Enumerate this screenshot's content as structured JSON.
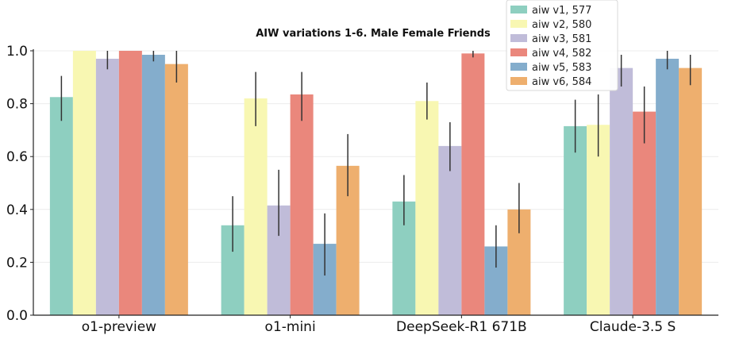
{
  "chart_data": {
    "type": "bar",
    "title": "AIW variations 1-6. Male Female Friends",
    "xlabel": "",
    "ylabel": "",
    "ylim": [
      0,
      1.0
    ],
    "yticks": [
      "0.0",
      "0.2",
      "0.4",
      "0.6",
      "0.8",
      "1.0"
    ],
    "categories": [
      "o1-preview",
      "o1-mini",
      "DeepSeek-R1 671B",
      "Claude-3.5 S"
    ],
    "grid": true,
    "legend_position": "top-right",
    "series": [
      {
        "name": "aiw v1, 577",
        "color": "#8ecfc0",
        "values": [
          0.825,
          0.34,
          0.43,
          0.715
        ],
        "err_low": [
          0.735,
          0.24,
          0.34,
          0.615
        ],
        "err_high": [
          0.905,
          0.45,
          0.53,
          0.815
        ]
      },
      {
        "name": "aiw v2, 580",
        "color": "#f8f7b2",
        "values": [
          1.0,
          0.82,
          0.81,
          0.72
        ],
        "err_low": [
          1.0,
          0.715,
          0.74,
          0.6
        ],
        "err_high": [
          1.0,
          0.92,
          0.88,
          0.835
        ]
      },
      {
        "name": "aiw v3, 581",
        "color": "#c0bcd9",
        "values": [
          0.97,
          0.415,
          0.64,
          0.935
        ],
        "err_low": [
          0.93,
          0.3,
          0.545,
          0.865
        ],
        "err_high": [
          1.0,
          0.55,
          0.73,
          0.985
        ]
      },
      {
        "name": "aiw v4, 582",
        "color": "#ea877c",
        "values": [
          1.0,
          0.835,
          0.99,
          0.77
        ],
        "err_low": [
          1.0,
          0.735,
          0.975,
          0.65
        ],
        "err_high": [
          1.0,
          0.92,
          1.0,
          0.865
        ]
      },
      {
        "name": "aiw v5, 583",
        "color": "#84adcc",
        "values": [
          0.985,
          0.27,
          0.26,
          0.97
        ],
        "err_low": [
          0.96,
          0.15,
          0.18,
          0.93
        ],
        "err_high": [
          1.0,
          0.385,
          0.34,
          1.0
        ]
      },
      {
        "name": "aiw v6, 584",
        "color": "#eeaf6e",
        "values": [
          0.95,
          0.565,
          0.4,
          0.935
        ],
        "err_low": [
          0.88,
          0.45,
          0.31,
          0.87
        ],
        "err_high": [
          1.0,
          0.685,
          0.5,
          0.985
        ]
      }
    ]
  }
}
